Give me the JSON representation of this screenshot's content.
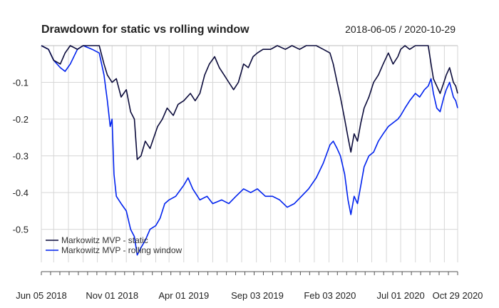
{
  "chart_data": {
    "type": "line",
    "title": "Drawdown for static vs rolling window",
    "subtitle": "2018-06-05 / 2020-10-29",
    "xlabel": "",
    "ylabel": "",
    "ylim": [
      -0.6,
      0.0
    ],
    "xlim": [
      "2018-06-05",
      "2020-10-29"
    ],
    "grid": true,
    "legend_position": "bottom-left",
    "x_tick_labels": [
      {
        "date": "2018-06-05",
        "label": "Jun 05 2018"
      },
      {
        "date": "2018-11-01",
        "label": "Nov 01 2018"
      },
      {
        "date": "2019-04-01",
        "label": "Apr 01 2019"
      },
      {
        "date": "2019-09-03",
        "label": "Sep 03 2019"
      },
      {
        "date": "2020-02-03",
        "label": "Feb 03 2020"
      },
      {
        "date": "2020-07-01",
        "label": "Jul 01 2020"
      },
      {
        "date": "2020-10-29",
        "label": "Oct 29 2020"
      }
    ],
    "y_tick_labels": [
      {
        "value": -0.1,
        "label": "-0.1"
      },
      {
        "value": -0.2,
        "label": "-0.2"
      },
      {
        "value": -0.3,
        "label": "-0.3"
      },
      {
        "value": -0.4,
        "label": "-0.4"
      },
      {
        "value": -0.5,
        "label": "-0.5"
      }
    ],
    "series": [
      {
        "name": "Markowitz MVP - static",
        "color": "#0b0b3b",
        "points": [
          [
            "2018-06-05",
            0.0
          ],
          [
            "2018-06-20",
            -0.01
          ],
          [
            "2018-07-01",
            -0.04
          ],
          [
            "2018-07-15",
            -0.05
          ],
          [
            "2018-07-25",
            -0.02
          ],
          [
            "2018-08-05",
            0.0
          ],
          [
            "2018-08-20",
            -0.01
          ],
          [
            "2018-09-01",
            0.0
          ],
          [
            "2018-09-20",
            0.0
          ],
          [
            "2018-10-05",
            0.0
          ],
          [
            "2018-10-15",
            -0.05
          ],
          [
            "2018-10-22",
            -0.08
          ],
          [
            "2018-11-01",
            -0.1
          ],
          [
            "2018-11-10",
            -0.09
          ],
          [
            "2018-11-20",
            -0.14
          ],
          [
            "2018-12-01",
            -0.12
          ],
          [
            "2018-12-10",
            -0.18
          ],
          [
            "2018-12-18",
            -0.2
          ],
          [
            "2018-12-24",
            -0.31
          ],
          [
            "2019-01-01",
            -0.3
          ],
          [
            "2019-01-10",
            -0.26
          ],
          [
            "2019-01-20",
            -0.28
          ],
          [
            "2019-01-28",
            -0.25
          ],
          [
            "2019-02-05",
            -0.22
          ],
          [
            "2019-02-15",
            -0.2
          ],
          [
            "2019-02-25",
            -0.17
          ],
          [
            "2019-03-10",
            -0.19
          ],
          [
            "2019-03-20",
            -0.16
          ],
          [
            "2019-04-01",
            -0.15
          ],
          [
            "2019-04-15",
            -0.13
          ],
          [
            "2019-04-25",
            -0.15
          ],
          [
            "2019-05-05",
            -0.13
          ],
          [
            "2019-05-15",
            -0.08
          ],
          [
            "2019-05-25",
            -0.05
          ],
          [
            "2019-06-05",
            -0.03
          ],
          [
            "2019-06-15",
            -0.06
          ],
          [
            "2019-06-25",
            -0.08
          ],
          [
            "2019-07-05",
            -0.1
          ],
          [
            "2019-07-15",
            -0.12
          ],
          [
            "2019-07-25",
            -0.1
          ],
          [
            "2019-08-05",
            -0.05
          ],
          [
            "2019-08-15",
            -0.06
          ],
          [
            "2019-08-25",
            -0.03
          ],
          [
            "2019-09-03",
            -0.02
          ],
          [
            "2019-09-15",
            -0.01
          ],
          [
            "2019-10-01",
            -0.01
          ],
          [
            "2019-10-15",
            0.0
          ],
          [
            "2019-11-01",
            -0.01
          ],
          [
            "2019-11-15",
            0.0
          ],
          [
            "2019-12-01",
            -0.01
          ],
          [
            "2019-12-15",
            0.0
          ],
          [
            "2020-01-05",
            0.0
          ],
          [
            "2020-01-20",
            -0.01
          ],
          [
            "2020-02-03",
            -0.02
          ],
          [
            "2020-02-10",
            -0.05
          ],
          [
            "2020-02-18",
            -0.1
          ],
          [
            "2020-02-25",
            -0.14
          ],
          [
            "2020-03-05",
            -0.2
          ],
          [
            "2020-03-12",
            -0.25
          ],
          [
            "2020-03-18",
            -0.29
          ],
          [
            "2020-03-25",
            -0.24
          ],
          [
            "2020-04-01",
            -0.26
          ],
          [
            "2020-04-08",
            -0.21
          ],
          [
            "2020-04-15",
            -0.17
          ],
          [
            "2020-04-25",
            -0.14
          ],
          [
            "2020-05-05",
            -0.1
          ],
          [
            "2020-05-15",
            -0.08
          ],
          [
            "2020-05-25",
            -0.05
          ],
          [
            "2020-06-05",
            -0.02
          ],
          [
            "2020-06-15",
            -0.05
          ],
          [
            "2020-06-25",
            -0.03
          ],
          [
            "2020-07-01",
            -0.01
          ],
          [
            "2020-07-10",
            0.0
          ],
          [
            "2020-07-20",
            -0.01
          ],
          [
            "2020-08-01",
            0.0
          ],
          [
            "2020-08-10",
            0.0
          ],
          [
            "2020-08-20",
            0.0
          ],
          [
            "2020-08-28",
            0.0
          ],
          [
            "2020-09-03",
            -0.05
          ],
          [
            "2020-09-08",
            -0.09
          ],
          [
            "2020-09-15",
            -0.11
          ],
          [
            "2020-09-22",
            -0.13
          ],
          [
            "2020-09-30",
            -0.1
          ],
          [
            "2020-10-05",
            -0.08
          ],
          [
            "2020-10-12",
            -0.06
          ],
          [
            "2020-10-20",
            -0.1
          ],
          [
            "2020-10-25",
            -0.11
          ],
          [
            "2020-10-29",
            -0.13
          ]
        ]
      },
      {
        "name": "Markowitz MVP - rolling window",
        "color": "#0022ee",
        "points": [
          [
            "2018-06-05",
            0.0
          ],
          [
            "2018-06-20",
            -0.01
          ],
          [
            "2018-07-01",
            -0.04
          ],
          [
            "2018-07-15",
            -0.06
          ],
          [
            "2018-07-25",
            -0.07
          ],
          [
            "2018-08-05",
            -0.05
          ],
          [
            "2018-08-20",
            -0.01
          ],
          [
            "2018-09-01",
            0.0
          ],
          [
            "2018-09-20",
            -0.01
          ],
          [
            "2018-10-05",
            -0.02
          ],
          [
            "2018-10-15",
            -0.08
          ],
          [
            "2018-10-22",
            -0.15
          ],
          [
            "2018-10-28",
            -0.22
          ],
          [
            "2018-11-01",
            -0.2
          ],
          [
            "2018-11-05",
            -0.35
          ],
          [
            "2018-11-10",
            -0.41
          ],
          [
            "2018-11-20",
            -0.43
          ],
          [
            "2018-12-01",
            -0.45
          ],
          [
            "2018-12-10",
            -0.5
          ],
          [
            "2018-12-18",
            -0.52
          ],
          [
            "2018-12-24",
            -0.57
          ],
          [
            "2019-01-01",
            -0.55
          ],
          [
            "2019-01-10",
            -0.53
          ],
          [
            "2019-01-20",
            -0.5
          ],
          [
            "2019-02-01",
            -0.49
          ],
          [
            "2019-02-10",
            -0.47
          ],
          [
            "2019-02-20",
            -0.43
          ],
          [
            "2019-03-01",
            -0.42
          ],
          [
            "2019-03-15",
            -0.41
          ],
          [
            "2019-04-01",
            -0.38
          ],
          [
            "2019-04-10",
            -0.36
          ],
          [
            "2019-04-20",
            -0.39
          ],
          [
            "2019-05-05",
            -0.42
          ],
          [
            "2019-05-20",
            -0.41
          ],
          [
            "2019-06-01",
            -0.43
          ],
          [
            "2019-06-20",
            -0.42
          ],
          [
            "2019-07-05",
            -0.43
          ],
          [
            "2019-07-20",
            -0.41
          ],
          [
            "2019-08-05",
            -0.39
          ],
          [
            "2019-08-20",
            -0.4
          ],
          [
            "2019-09-03",
            -0.39
          ],
          [
            "2019-09-20",
            -0.41
          ],
          [
            "2019-10-05",
            -0.41
          ],
          [
            "2019-10-20",
            -0.42
          ],
          [
            "2019-11-05",
            -0.44
          ],
          [
            "2019-11-20",
            -0.43
          ],
          [
            "2019-12-05",
            -0.41
          ],
          [
            "2019-12-20",
            -0.39
          ],
          [
            "2020-01-05",
            -0.36
          ],
          [
            "2020-01-20",
            -0.32
          ],
          [
            "2020-02-03",
            -0.27
          ],
          [
            "2020-02-10",
            -0.26
          ],
          [
            "2020-02-18",
            -0.28
          ],
          [
            "2020-02-25",
            -0.3
          ],
          [
            "2020-03-05",
            -0.35
          ],
          [
            "2020-03-12",
            -0.42
          ],
          [
            "2020-03-18",
            -0.46
          ],
          [
            "2020-03-25",
            -0.41
          ],
          [
            "2020-04-01",
            -0.43
          ],
          [
            "2020-04-08",
            -0.38
          ],
          [
            "2020-04-15",
            -0.33
          ],
          [
            "2020-04-25",
            -0.3
          ],
          [
            "2020-05-05",
            -0.29
          ],
          [
            "2020-05-15",
            -0.26
          ],
          [
            "2020-05-25",
            -0.24
          ],
          [
            "2020-06-05",
            -0.22
          ],
          [
            "2020-06-15",
            -0.21
          ],
          [
            "2020-06-25",
            -0.2
          ],
          [
            "2020-07-01",
            -0.19
          ],
          [
            "2020-07-10",
            -0.17
          ],
          [
            "2020-07-20",
            -0.15
          ],
          [
            "2020-08-01",
            -0.13
          ],
          [
            "2020-08-10",
            -0.14
          ],
          [
            "2020-08-20",
            -0.12
          ],
          [
            "2020-08-28",
            -0.11
          ],
          [
            "2020-09-03",
            -0.09
          ],
          [
            "2020-09-08",
            -0.13
          ],
          [
            "2020-09-15",
            -0.17
          ],
          [
            "2020-09-22",
            -0.18
          ],
          [
            "2020-09-30",
            -0.14
          ],
          [
            "2020-10-05",
            -0.12
          ],
          [
            "2020-10-12",
            -0.1
          ],
          [
            "2020-10-20",
            -0.14
          ],
          [
            "2020-10-25",
            -0.15
          ],
          [
            "2020-10-29",
            -0.17
          ]
        ]
      }
    ]
  }
}
